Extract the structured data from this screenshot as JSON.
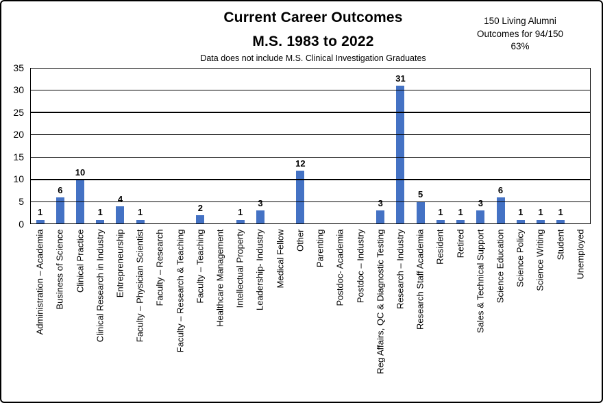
{
  "header": {
    "title_line1": "Current Career Outcomes",
    "title_line2": "M.S. 1983 to 2022",
    "subtitle": "Data does not include M.S. Clinical Investigation Graduates",
    "annotation": {
      "line1": "150 Living Alumni",
      "line2": "Outcomes for 94/150",
      "line3": "63%"
    }
  },
  "chart_data": {
    "type": "bar",
    "title": "Current Career Outcomes M.S. 1983 to 2022",
    "subtitle": "Data does not include M.S. Clinical Investigation Graduates",
    "categories": [
      "Administration – Academia",
      "Business of Science",
      "Clinical Practice",
      "Clinical Research in Industry",
      "Entrepreneurship",
      "Faculty – Physician Scientist",
      "Faculty – Research",
      "Faculty – Research & Teaching",
      "Faculty – Teaching",
      "Healthcare Management",
      "Intellectual Property",
      "Leadership- Industry",
      "Medical Fellow",
      "Other",
      "Parenting",
      "Postdoc- Academia",
      "Postdoc – Industry",
      "Reg Affairs, QC & Diagnostic Testing",
      "Research – Industry",
      "Research Staff Academia",
      "Resident",
      "Retired",
      "Sales & Technical Support",
      "Science Education",
      "Science Policy",
      "Science Writing",
      "Student",
      "Unemployed"
    ],
    "values": [
      1,
      6,
      10,
      1,
      4,
      1,
      0,
      0,
      2,
      0,
      1,
      3,
      0,
      12,
      0,
      0,
      0,
      3,
      31,
      5,
      1,
      1,
      3,
      6,
      1,
      1,
      1,
      0
    ],
    "xlabel": "",
    "ylabel": "",
    "ylim": [
      0,
      35
    ],
    "yticks": [
      0,
      5,
      10,
      15,
      20,
      25,
      30,
      35
    ],
    "grid": true,
    "gridlines_in_front_of_bars": true,
    "legend": false,
    "value_labels_on_nonzero_bars": true
  },
  "colors": {
    "bar": "#4472C4",
    "gridline": "#000000",
    "axis": "#000000",
    "frame_border": "#000000",
    "background": "#FFFFFF",
    "text": "#000000"
  }
}
